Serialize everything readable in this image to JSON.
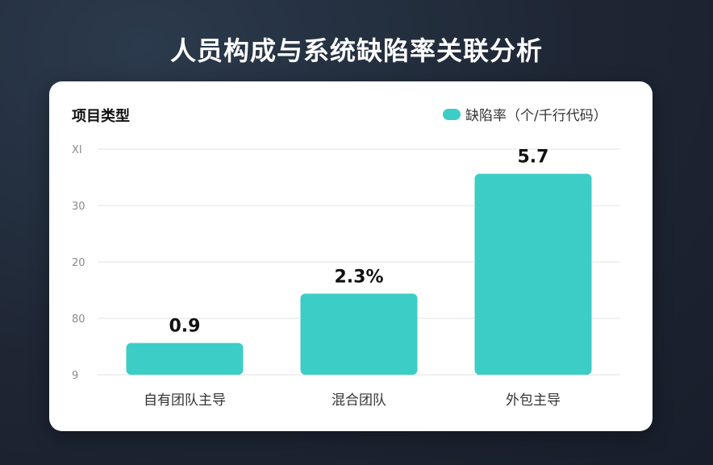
{
  "page": {
    "title": "人员构成与系统缺陷率关联分析"
  },
  "chart_data": {
    "type": "bar",
    "ylabel": "项目类型",
    "categories": [
      "自有团队主导",
      "混合团队",
      "外包主导"
    ],
    "series": [
      {
        "name": "缺陷率（个/千行代码）",
        "values": [
          0.9,
          2.3,
          5.7
        ],
        "color": "#3ccdc6"
      }
    ],
    "data_labels": [
      "0.9",
      "2.3%",
      "5.7"
    ],
    "y_ticks": [
      "9",
      "80",
      "20",
      "30",
      "XI"
    ],
    "ylim": [
      0,
      6.4
    ],
    "grid": true,
    "legend_position": "top-right"
  }
}
